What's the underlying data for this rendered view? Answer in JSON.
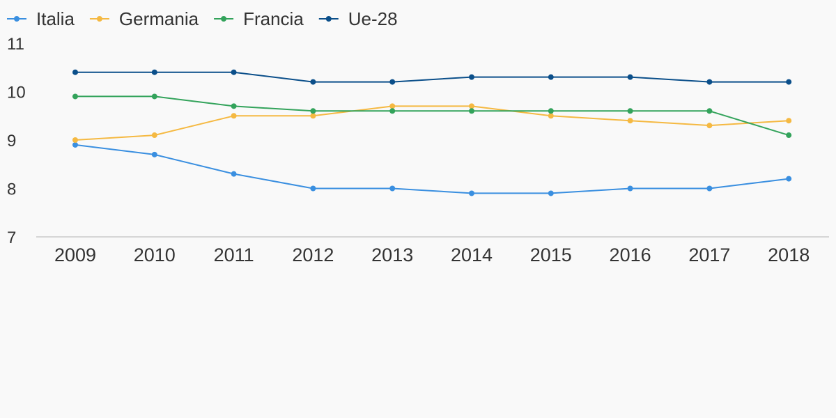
{
  "chart_data": {
    "type": "line",
    "title": "",
    "xlabel": "",
    "ylabel": "",
    "x": [
      "2009",
      "2010",
      "2011",
      "2012",
      "2013",
      "2014",
      "2015",
      "2016",
      "2017",
      "2018"
    ],
    "ylim": [
      7,
      11
    ],
    "y_ticks": [
      "7",
      "8",
      "9",
      "10",
      "11"
    ],
    "grid": false,
    "legend_position": "top-left",
    "series": [
      {
        "name": "Italia",
        "color": "#3a8fe0",
        "values": [
          8.9,
          8.7,
          8.3,
          8.0,
          8.0,
          7.9,
          7.9,
          8.0,
          8.0,
          8.2
        ]
      },
      {
        "name": "Germania",
        "color": "#f5b942",
        "values": [
          9.0,
          9.1,
          9.5,
          9.5,
          9.7,
          9.7,
          9.5,
          9.4,
          9.3,
          9.4
        ]
      },
      {
        "name": "Francia",
        "color": "#33a35b",
        "values": [
          9.9,
          9.9,
          9.7,
          9.6,
          9.6,
          9.6,
          9.6,
          9.6,
          9.6,
          9.1
        ]
      },
      {
        "name": "Ue-28",
        "color": "#0b4f8a",
        "values": [
          10.4,
          10.4,
          10.4,
          10.2,
          10.2,
          10.3,
          10.3,
          10.3,
          10.2,
          10.2
        ]
      }
    ]
  }
}
